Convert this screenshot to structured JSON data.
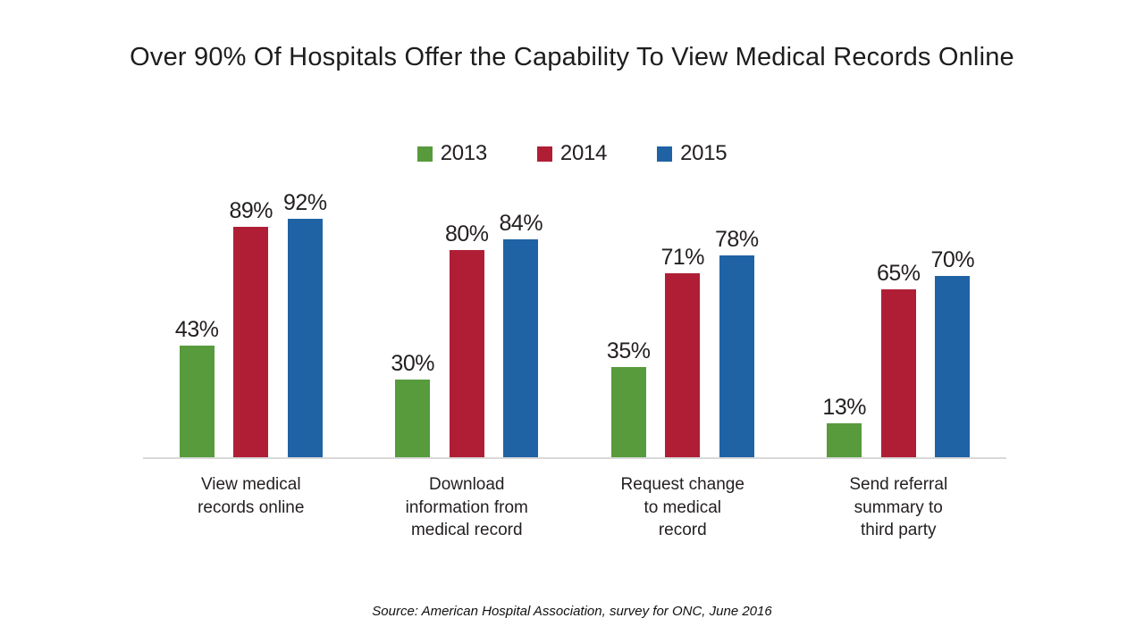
{
  "chart_data": {
    "type": "bar",
    "title": "Over 90% Of Hospitals Offer the Capability To View Medical Records Online",
    "categories": [
      "View medical records online",
      "Download information from medical record",
      "Request change to medical record",
      "Send referral summary to third party"
    ],
    "category_label_lines": [
      [
        "View medical",
        "records online"
      ],
      [
        "Download",
        "information from",
        "medical record"
      ],
      [
        "Request change",
        "to medical",
        "record"
      ],
      [
        "Send referral",
        "summary to",
        "third party"
      ]
    ],
    "series": [
      {
        "name": "2013",
        "color": "#579B3C",
        "values": [
          43,
          30,
          35,
          13
        ]
      },
      {
        "name": "2014",
        "color": "#B01E36",
        "values": [
          89,
          80,
          71,
          65
        ]
      },
      {
        "name": "2015",
        "color": "#1F63A4",
        "values": [
          92,
          84,
          78,
          70
        ]
      }
    ],
    "value_suffix": "%",
    "ylim": [
      0,
      100
    ],
    "grid": false,
    "legend_position": "top",
    "axis_line_color": "#D9D9D9",
    "label_color": "#231F20",
    "source": "Source: American Hospital Association, survey for ONC, June 2016"
  }
}
